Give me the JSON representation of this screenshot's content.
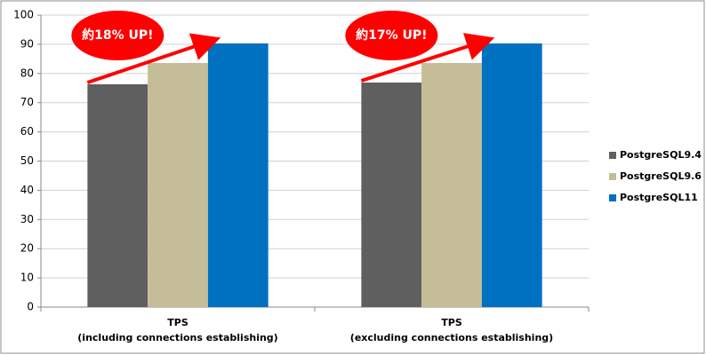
{
  "chart_data": {
    "type": "bar",
    "categories": [
      [
        "TPS",
        "(including connections establishing)"
      ],
      [
        "TPS",
        "(excluding connections establishing)"
      ]
    ],
    "series": [
      {
        "name": "PostgreSQL9.4",
        "color": "#5f5f5f",
        "values": [
          76.3,
          76.9
        ]
      },
      {
        "name": "PostgreSQL9.6",
        "color": "#c4bd97",
        "values": [
          83.6,
          83.6
        ]
      },
      {
        "name": "PostgreSQL11",
        "color": "#0070c0",
        "values": [
          90.3,
          90.3
        ]
      }
    ],
    "annotations": [
      "約18% UP!",
      "約17% UP!"
    ],
    "ylim": [
      0,
      100
    ],
    "yticks": [
      0,
      10,
      20,
      30,
      40,
      50,
      60,
      70,
      80,
      90,
      100
    ],
    "grid": true,
    "legend": "right"
  }
}
